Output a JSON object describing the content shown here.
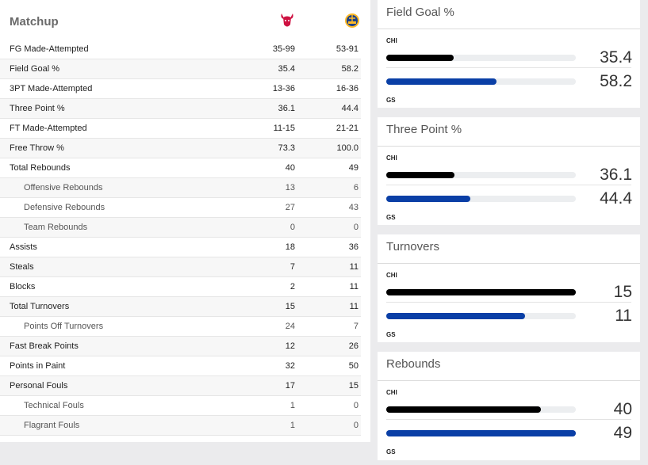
{
  "matchup": {
    "title": "Matchup",
    "teams": [
      {
        "abbr": "CHI",
        "logo": "bulls-logo-icon",
        "color": "#ce1141"
      },
      {
        "abbr": "GS",
        "logo": "warriors-logo-icon",
        "color": "#1d428a"
      }
    ],
    "rows": [
      {
        "label": "FG Made-Attempted",
        "chi": "35-99",
        "gs": "53-91",
        "sub": false
      },
      {
        "label": "Field Goal %",
        "chi": "35.4",
        "gs": "58.2",
        "sub": false
      },
      {
        "label": "3PT Made-Attempted",
        "chi": "13-36",
        "gs": "16-36",
        "sub": false
      },
      {
        "label": "Three Point %",
        "chi": "36.1",
        "gs": "44.4",
        "sub": false
      },
      {
        "label": "FT Made-Attempted",
        "chi": "11-15",
        "gs": "21-21",
        "sub": false
      },
      {
        "label": "Free Throw %",
        "chi": "73.3",
        "gs": "100.0",
        "sub": false
      },
      {
        "label": "Total Rebounds",
        "chi": "40",
        "gs": "49",
        "sub": false
      },
      {
        "label": "Offensive Rebounds",
        "chi": "13",
        "gs": "6",
        "sub": true
      },
      {
        "label": "Defensive Rebounds",
        "chi": "27",
        "gs": "43",
        "sub": true
      },
      {
        "label": "Team Rebounds",
        "chi": "0",
        "gs": "0",
        "sub": true
      },
      {
        "label": "Assists",
        "chi": "18",
        "gs": "36",
        "sub": false
      },
      {
        "label": "Steals",
        "chi": "7",
        "gs": "11",
        "sub": false
      },
      {
        "label": "Blocks",
        "chi": "2",
        "gs": "11",
        "sub": false
      },
      {
        "label": "Total Turnovers",
        "chi": "15",
        "gs": "11",
        "sub": false
      },
      {
        "label": "Points Off Turnovers",
        "chi": "24",
        "gs": "7",
        "sub": true
      },
      {
        "label": "Fast Break Points",
        "chi": "12",
        "gs": "26",
        "sub": false
      },
      {
        "label": "Points in Paint",
        "chi": "32",
        "gs": "50",
        "sub": false
      },
      {
        "label": "Personal Fouls",
        "chi": "17",
        "gs": "15",
        "sub": false
      },
      {
        "label": "Technical Fouls",
        "chi": "1",
        "gs": "0",
        "sub": true
      },
      {
        "label": "Flagrant Fouls",
        "chi": "1",
        "gs": "0",
        "sub": true
      }
    ]
  },
  "cards": [
    {
      "title": "Field Goal %",
      "team1": "CHI",
      "team2": "GS",
      "v1": "35.4",
      "v2": "58.2",
      "f1": 0.354,
      "f2": 0.582
    },
    {
      "title": "Three Point %",
      "team1": "CHI",
      "team2": "GS",
      "v1": "36.1",
      "v2": "44.4",
      "f1": 0.361,
      "f2": 0.444
    },
    {
      "title": "Turnovers",
      "team1": "CHI",
      "team2": "GS",
      "v1": "15",
      "v2": "11",
      "f1": 1.0,
      "f2": 0.733
    },
    {
      "title": "Rebounds",
      "team1": "CHI",
      "team2": "GS",
      "v1": "40",
      "v2": "49",
      "f1": 0.816,
      "f2": 1.0
    }
  ]
}
